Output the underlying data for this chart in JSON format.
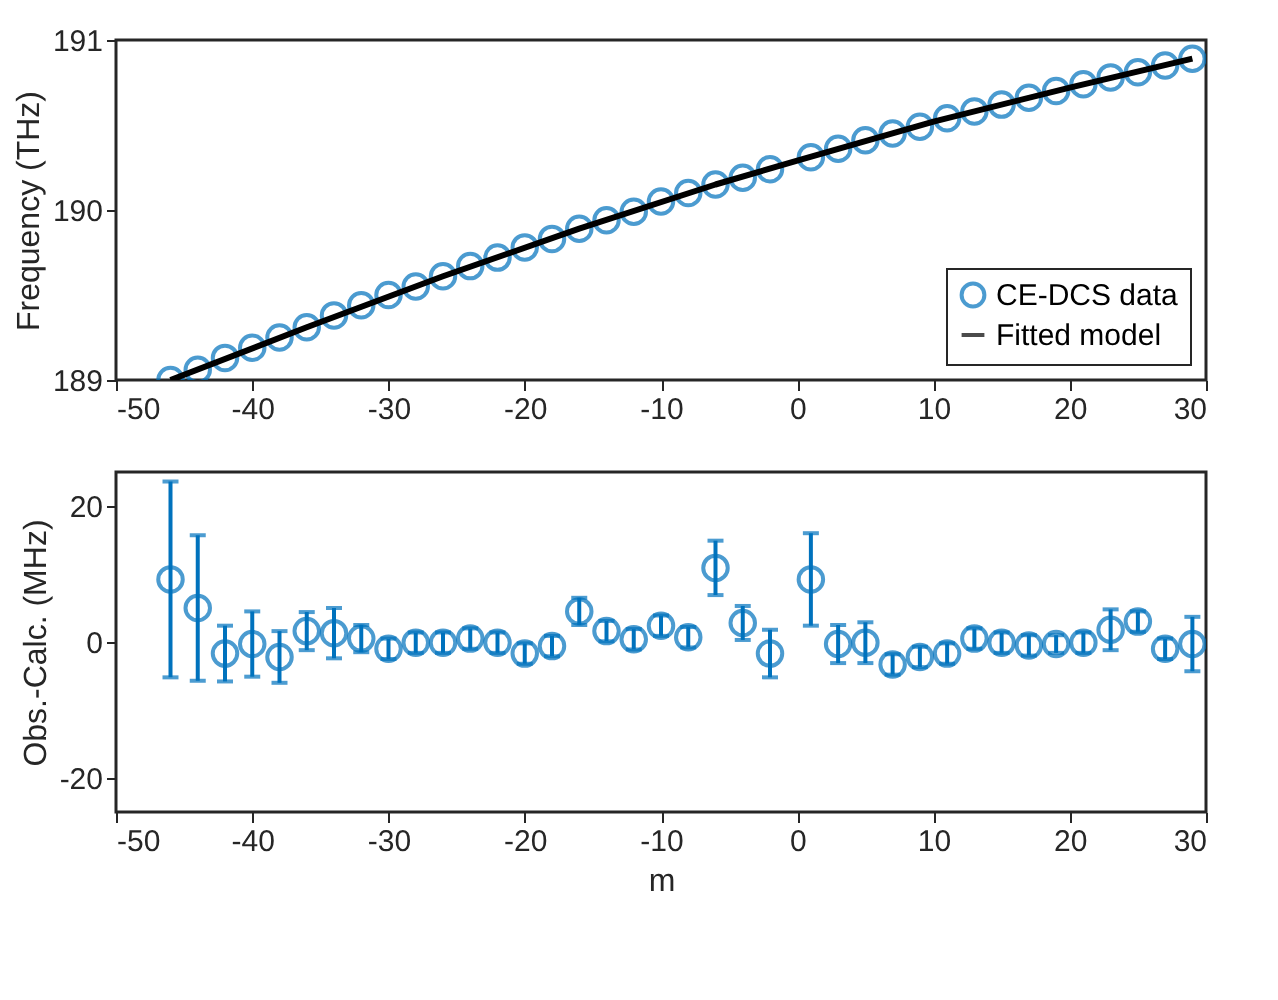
{
  "chart_data": [
    {
      "type": "scatter",
      "ylabel": "Frequency (THz)",
      "xlim": [
        -50,
        30
      ],
      "xticks": [
        -50,
        -40,
        -30,
        -20,
        -10,
        0,
        10,
        20,
        30
      ],
      "ylim": [
        189,
        191
      ],
      "yticks": [
        189,
        190,
        191
      ],
      "legend": "bottom right",
      "marker": "circle",
      "grid": false,
      "series": [
        {
          "name": "CE-DCS data",
          "type": "scatter",
          "color": "#0072bd",
          "x": [
            -46,
            -44,
            -42,
            -40,
            -38,
            -36,
            -34,
            -32,
            -30,
            -28,
            -26,
            -24,
            -22,
            -20,
            -18,
            -16,
            -14,
            -12,
            -10,
            -8,
            -6,
            -4,
            -2,
            1,
            3,
            5,
            7,
            9,
            11,
            13,
            15,
            17,
            19,
            21,
            23,
            25,
            27,
            29
          ],
          "values": [
            189.0,
            189.06,
            189.13,
            189.19,
            189.25,
            189.31,
            189.38,
            189.44,
            189.5,
            189.55,
            189.61,
            189.67,
            189.72,
            189.78,
            189.83,
            189.89,
            189.94,
            189.99,
            190.05,
            190.1,
            190.15,
            190.19,
            190.24,
            190.31,
            190.36,
            190.41,
            190.45,
            190.49,
            190.54,
            190.58,
            190.62,
            190.66,
            190.7,
            190.74,
            190.78,
            190.81,
            190.85,
            190.89
          ]
        },
        {
          "name": "Fitted model",
          "type": "line",
          "color": "#000000",
          "line_style": "solid",
          "marker": "none",
          "x": [
            -46,
            -36,
            -26,
            -16,
            -6,
            0,
            10,
            20,
            29
          ],
          "values": [
            189.0,
            189.31,
            189.61,
            189.89,
            190.15,
            190.29,
            190.52,
            190.72,
            190.89
          ]
        }
      ]
    },
    {
      "type": "scatter",
      "xlabel": "m",
      "ylabel": "Obs.-Calc. (MHz)",
      "xlim": [
        -50,
        30
      ],
      "xticks": [
        -50,
        -40,
        -30,
        -20,
        -10,
        0,
        10,
        20,
        30
      ],
      "ylim": [
        -25,
        25
      ],
      "yticks": [
        -20,
        0,
        20
      ],
      "marker": "circle",
      "grid": false,
      "series": [
        {
          "type": "scatter",
          "color": "#0072bd",
          "x": [
            -46,
            -44,
            -42,
            -40,
            -38,
            -36,
            -34,
            -32,
            -30,
            -28,
            -26,
            -24,
            -22,
            -20,
            -18,
            -16,
            -14,
            -12,
            -10,
            -8,
            -6,
            -4,
            -2,
            1,
            3,
            5,
            7,
            9,
            11,
            13,
            15,
            17,
            19,
            21,
            23,
            25,
            27,
            29
          ],
          "values": [
            9.2,
            5.0,
            -1.7,
            -0.3,
            -2.2,
            1.6,
            1.3,
            0.5,
            -1.0,
            -0.1,
            -0.1,
            0.5,
            -0.1,
            -1.7,
            -0.6,
            4.5,
            1.6,
            0.4,
            2.4,
            0.7,
            10.9,
            2.8,
            -1.7,
            9.2,
            -0.3,
            -0.1,
            -3.3,
            -2.2,
            -1.7,
            0.5,
            -0.1,
            -0.5,
            -0.3,
            -0.1,
            1.8,
            3.0,
            -1.0,
            -0.3
          ],
          "errors": [
            14.4,
            10.7,
            4.1,
            4.8,
            3.8,
            2.8,
            3.7,
            2.0,
            1.5,
            1.5,
            1.5,
            1.5,
            1.5,
            1.5,
            1.5,
            2.0,
            1.5,
            1.5,
            1.5,
            1.5,
            4.0,
            2.5,
            3.5,
            6.8,
            2.8,
            3.0,
            1.5,
            1.5,
            1.5,
            1.5,
            1.5,
            1.5,
            1.3,
            1.5,
            3.0,
            1.5,
            1.5,
            4.0
          ]
        }
      ]
    }
  ]
}
